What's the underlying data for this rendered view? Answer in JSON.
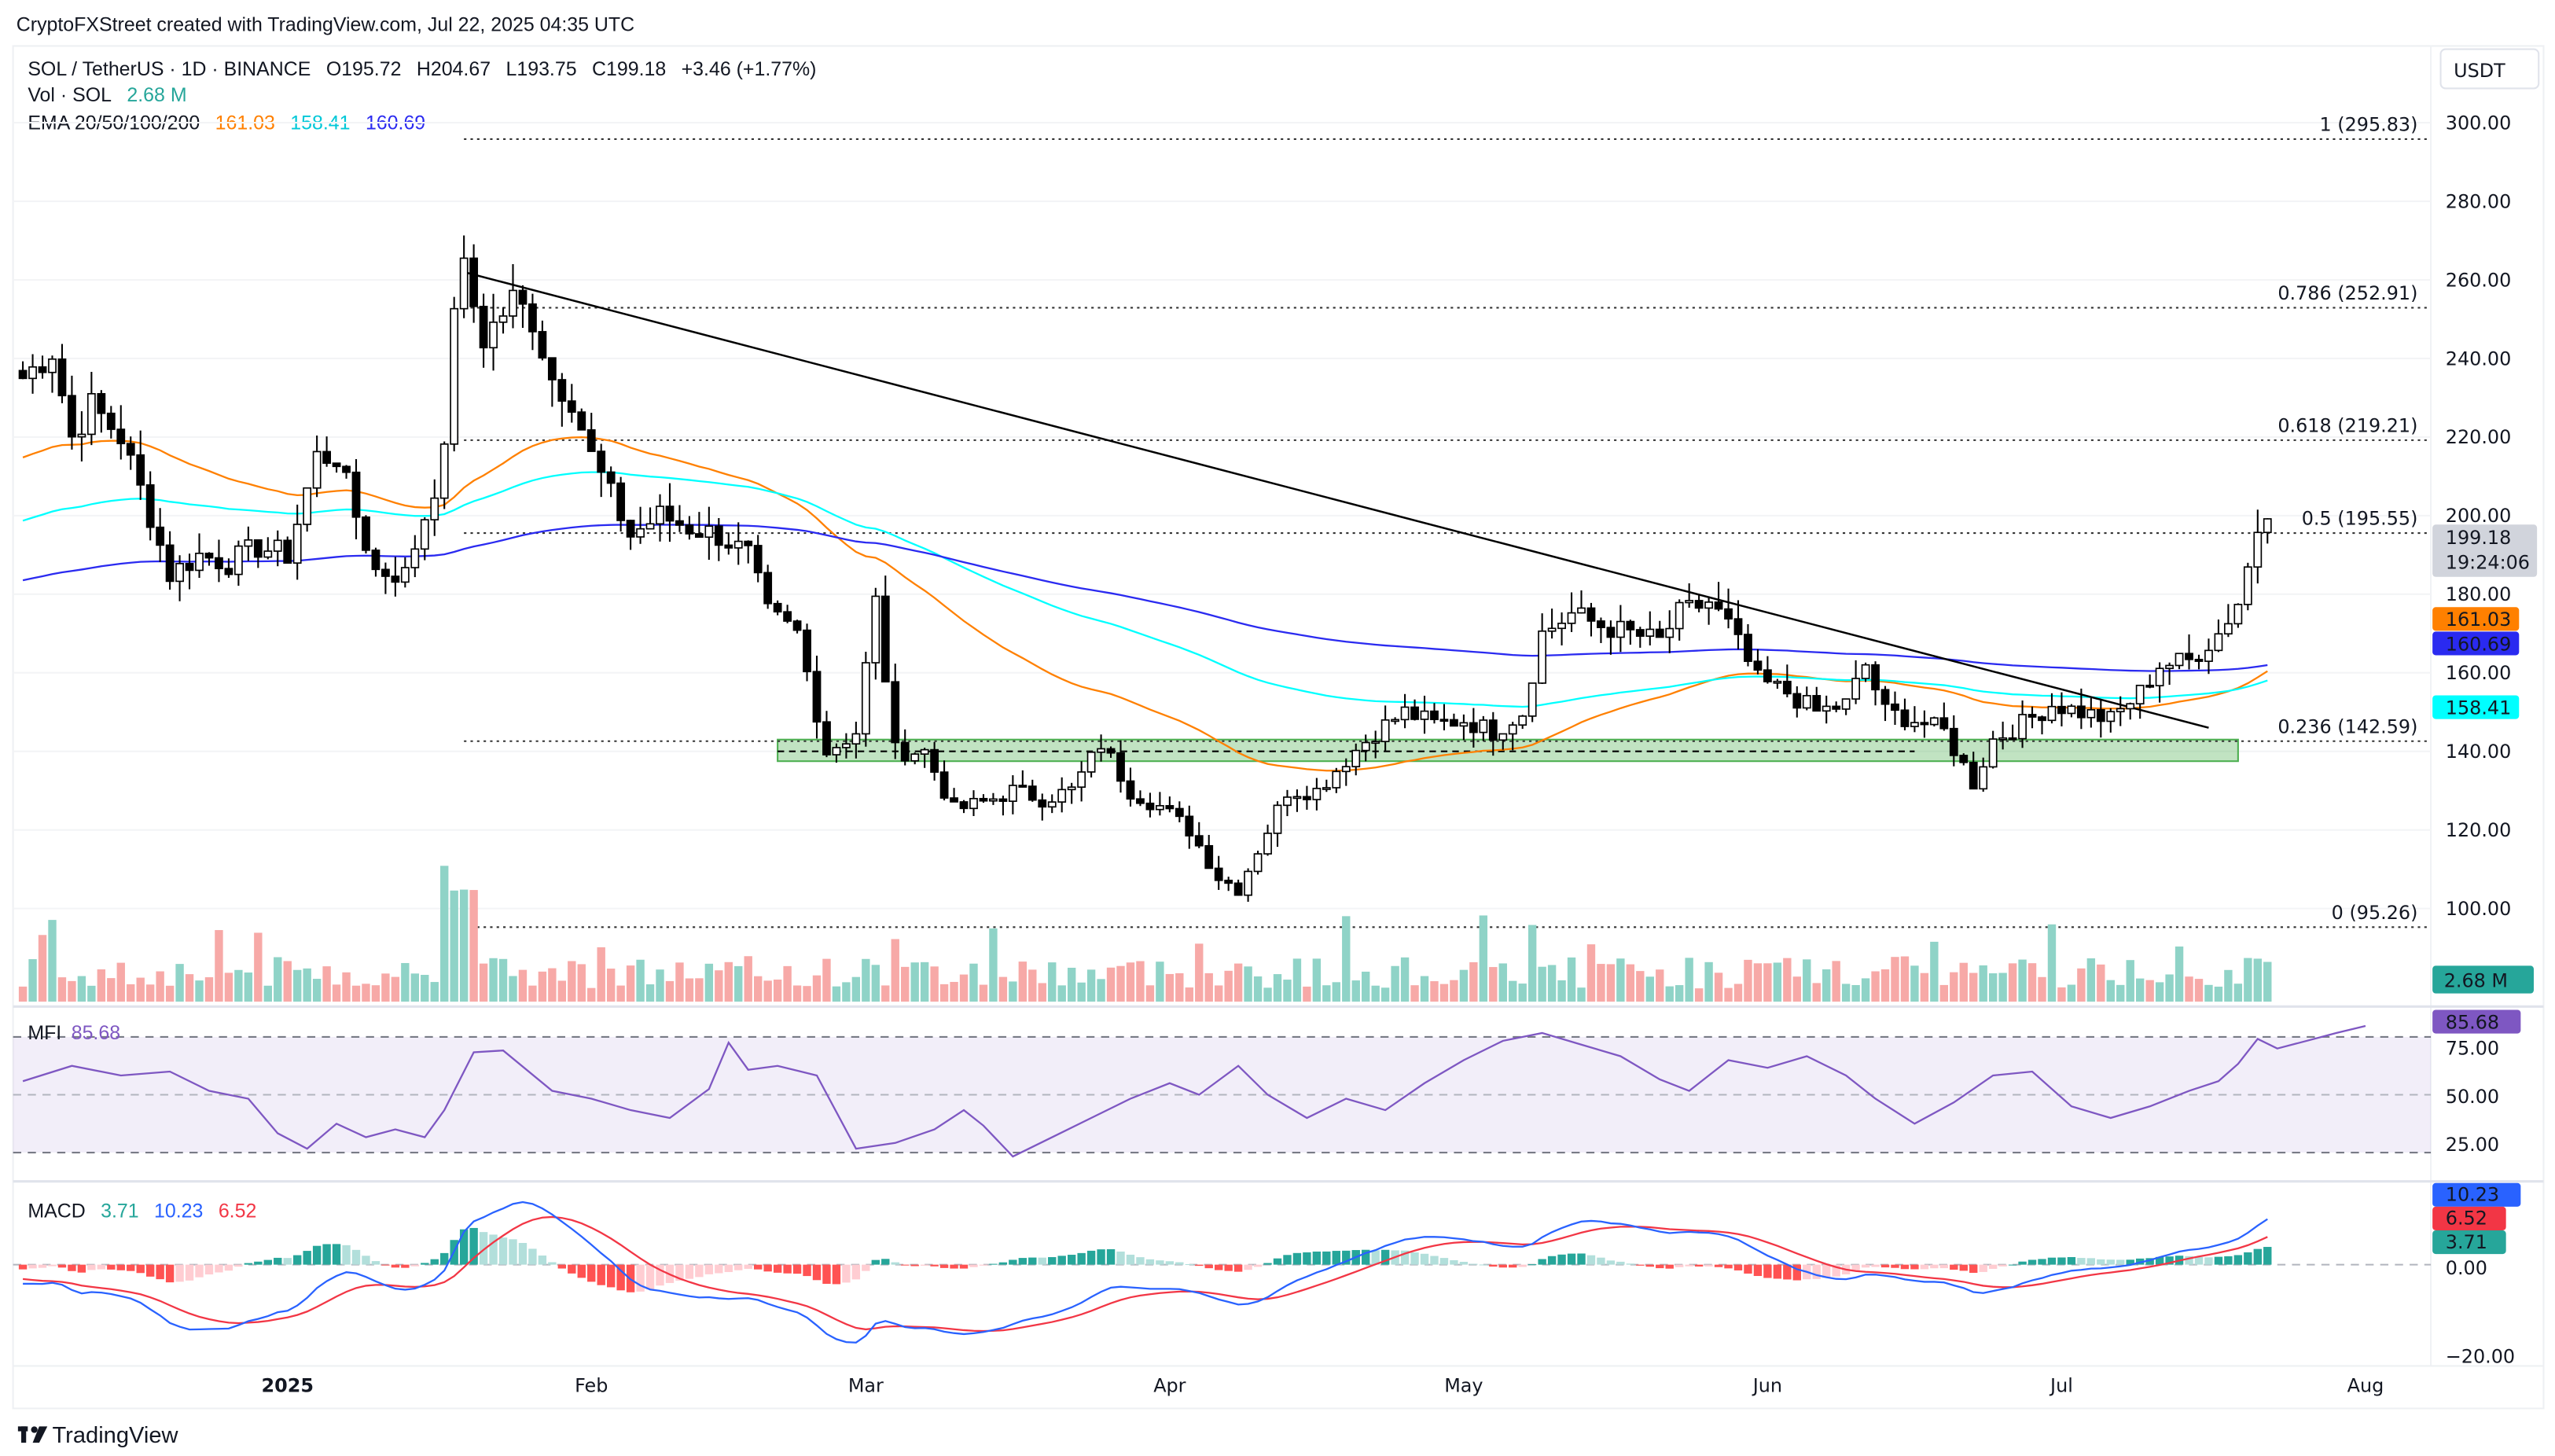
{
  "header": {
    "credit": "CryptoFXStreet created with TradingView.com, Jul 22, 2025 04:35 UTC",
    "symbol": "SOL / TetherUS · 1D · BINANCE",
    "open": "O195.72",
    "high": "H204.67",
    "low": "L193.75",
    "close": "C199.18",
    "change": "+3.46 (+1.77%)",
    "vol_label": "Vol · SOL",
    "vol_value": "2.68 M",
    "ema_label": "EMA 20/50/100/200",
    "ema_values": [
      "161.03",
      "158.41",
      "160.69"
    ],
    "currency": "USDT"
  },
  "colors": {
    "up": "#ffffff",
    "down": "#000000",
    "vol_up": "#8fd3c7",
    "vol_down": "#f7a9a7",
    "ema_orange": "#ff8000",
    "ema_cyan": "#00ffff",
    "ema_blue": "#2a2af0",
    "mfi": "#7e57c2",
    "macd": "#2962ff",
    "signal": "#f23645",
    "hist_up": "#26a69a",
    "zone": "#4caf50"
  },
  "price_axis": {
    "ticks": [
      "300.00",
      "280.00",
      "260.00",
      "240.00",
      "220.00",
      "200.00",
      "180.00",
      "160.00",
      "140.00",
      "120.00",
      "100.00"
    ],
    "last_price": "199.18",
    "countdown": "19:24:06",
    "ema_tags": [
      "161.03",
      "160.69",
      "158.41"
    ],
    "volume_tag": "2.68 M"
  },
  "fib_levels": [
    {
      "label": "1 (295.83)",
      "price": 295.83
    },
    {
      "label": "0.786 (252.91)",
      "price": 252.91
    },
    {
      "label": "0.618 (219.21)",
      "price": 219.21
    },
    {
      "label": "0.5 (195.55)",
      "price": 195.55
    },
    {
      "label": "0.236 (142.59)",
      "price": 142.59
    },
    {
      "label": "0 (95.26)",
      "price": 95.26
    }
  ],
  "mfi": {
    "label": "MFI",
    "value": "85.68",
    "ticks": [
      "75.00",
      "50.00",
      "25.00"
    ]
  },
  "macd": {
    "label": "MACD",
    "hist": "3.71",
    "macd": "10.23",
    "signal": "6.52",
    "ticks": [
      "0.00",
      "−20.00"
    ]
  },
  "time_axis": [
    "2025",
    "Feb",
    "Mar",
    "Apr",
    "May",
    "Jun",
    "Jul",
    "Aug"
  ],
  "footer": {
    "brand": "TradingView"
  },
  "chart_data": {
    "type": "candlestick",
    "title": "SOL / TetherUS 1D",
    "x_unit": "days since 2025-01-01",
    "ylim": [
      88,
      306
    ],
    "close_points": [
      [
        -27,
        235
      ],
      [
        -24,
        242
      ],
      [
        -22,
        220
      ],
      [
        -20,
        228
      ],
      [
        -17,
        220
      ],
      [
        -14,
        200
      ],
      [
        -12,
        185
      ],
      [
        -9,
        190
      ],
      [
        -6,
        188
      ],
      [
        -3,
        192
      ],
      [
        0,
        190
      ],
      [
        3,
        215
      ],
      [
        5,
        215
      ],
      [
        7,
        200
      ],
      [
        9,
        186
      ],
      [
        12,
        185
      ],
      [
        14,
        200
      ],
      [
        16,
        215
      ],
      [
        17,
        255
      ],
      [
        18,
        262
      ],
      [
        20,
        245
      ],
      [
        23,
        255
      ],
      [
        25,
        250
      ],
      [
        27,
        235
      ],
      [
        29,
        230
      ],
      [
        31,
        215
      ],
      [
        33,
        205
      ],
      [
        35,
        195
      ],
      [
        38,
        200
      ],
      [
        41,
        197
      ],
      [
        44,
        195
      ],
      [
        47,
        190
      ],
      [
        49,
        175
      ],
      [
        52,
        170
      ],
      [
        55,
        140
      ],
      [
        58,
        145
      ],
      [
        60,
        178
      ],
      [
        62,
        140
      ],
      [
        65,
        140
      ],
      [
        68,
        125
      ],
      [
        71,
        127
      ],
      [
        74,
        130
      ],
      [
        77,
        128
      ],
      [
        80,
        130
      ],
      [
        83,
        142
      ],
      [
        86,
        130
      ],
      [
        89,
        126
      ],
      [
        92,
        120
      ],
      [
        95,
        108
      ],
      [
        97,
        105
      ],
      [
        99,
        115
      ],
      [
        102,
        130
      ],
      [
        105,
        130
      ],
      [
        108,
        138
      ],
      [
        111,
        145
      ],
      [
        114,
        150
      ],
      [
        117,
        147
      ],
      [
        120,
        148
      ],
      [
        123,
        145
      ],
      [
        126,
        150
      ],
      [
        128,
        170
      ],
      [
        131,
        175
      ],
      [
        134,
        172
      ],
      [
        137,
        170
      ],
      [
        140,
        168
      ],
      [
        142,
        175
      ],
      [
        145,
        178
      ],
      [
        147,
        172
      ],
      [
        150,
        158
      ],
      [
        153,
        155
      ],
      [
        156,
        150
      ],
      [
        159,
        152
      ],
      [
        161,
        162
      ],
      [
        163,
        150
      ],
      [
        166,
        148
      ],
      [
        169,
        145
      ],
      [
        172,
        132
      ],
      [
        174,
        143
      ],
      [
        177,
        147
      ],
      [
        180,
        152
      ],
      [
        183,
        150
      ],
      [
        186,
        148
      ],
      [
        189,
        155
      ],
      [
        191,
        162
      ],
      [
        194,
        163
      ],
      [
        197,
        170
      ],
      [
        199,
        178
      ],
      [
        201,
        195.72
      ],
      [
        202,
        199.18
      ]
    ],
    "ema_seed": {
      "orange": 214,
      "cyan": 198,
      "blue": 183
    },
    "ema_final": {
      "orange": 161.03,
      "cyan": 158.41,
      "blue": 160.69
    },
    "mfi_points": [
      [
        -27,
        57
      ],
      [
        -22,
        65
      ],
      [
        -17,
        60
      ],
      [
        -12,
        62
      ],
      [
        -8,
        52
      ],
      [
        -4,
        48
      ],
      [
        -1,
        30
      ],
      [
        2,
        22
      ],
      [
        5,
        35
      ],
      [
        8,
        28
      ],
      [
        11,
        32
      ],
      [
        14,
        28
      ],
      [
        16,
        42
      ],
      [
        19,
        72
      ],
      [
        22,
        73
      ],
      [
        27,
        52
      ],
      [
        31,
        48
      ],
      [
        35,
        42
      ],
      [
        39,
        38
      ],
      [
        43,
        53
      ],
      [
        45,
        77
      ],
      [
        47,
        63
      ],
      [
        50,
        65
      ],
      [
        54,
        60
      ],
      [
        58,
        22
      ],
      [
        62,
        25
      ],
      [
        66,
        32
      ],
      [
        69,
        42
      ],
      [
        71,
        34
      ],
      [
        74,
        18
      ],
      [
        78,
        28
      ],
      [
        82,
        38
      ],
      [
        86,
        48
      ],
      [
        90,
        56
      ],
      [
        93,
        50
      ],
      [
        97,
        65
      ],
      [
        100,
        50
      ],
      [
        104,
        38
      ],
      [
        108,
        48
      ],
      [
        112,
        42
      ],
      [
        116,
        56
      ],
      [
        120,
        68
      ],
      [
        124,
        78
      ],
      [
        128,
        82
      ],
      [
        132,
        76
      ],
      [
        136,
        70
      ],
      [
        140,
        58
      ],
      [
        143,
        52
      ],
      [
        147,
        68
      ],
      [
        151,
        64
      ],
      [
        155,
        70
      ],
      [
        159,
        60
      ],
      [
        162,
        48
      ],
      [
        166,
        35
      ],
      [
        170,
        46
      ],
      [
        174,
        60
      ],
      [
        178,
        62
      ],
      [
        182,
        44
      ],
      [
        186,
        38
      ],
      [
        190,
        44
      ],
      [
        194,
        52
      ],
      [
        197,
        57
      ],
      [
        199,
        66
      ],
      [
        201,
        79
      ],
      [
        203,
        74
      ],
      [
        206,
        78
      ],
      [
        209,
        82
      ],
      [
        212,
        85.68
      ]
    ],
    "fib": [
      295.83,
      252.91,
      219.21,
      195.55,
      142.59,
      95.26
    ],
    "support_zone": [
      137.5,
      143
    ],
    "trendline": [
      [
        18,
        262
      ],
      [
        196,
        146
      ]
    ]
  }
}
